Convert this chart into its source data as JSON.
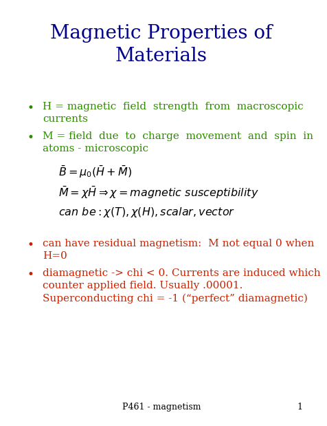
{
  "title": "Magnetic Properties of\nMaterials",
  "title_color": "#00008B",
  "title_fontsize": 20,
  "bullet_color": "#2E8B00",
  "bullet_color2": "#CC2200",
  "background_color": "#FFFFFF",
  "footer_text": "P461 - magnetism",
  "footer_page": "1",
  "bullets_green": [
    [
      "H = magnetic  field  strength  from  macroscopic",
      "currents"
    ],
    [
      "M = field  due  to  charge  movement  and  spin  in",
      "atoms - microscopic"
    ]
  ],
  "bullets_red": [
    [
      "can have residual magnetism:  M not equal 0 when",
      "H=0"
    ],
    [
      "diamagnetic -> chi < 0. Currents are induced which",
      "counter applied field. Usually .00001.",
      "Superconducting chi = -1 (“perfect” diamagnetic)"
    ]
  ],
  "eq1": "$\\bar{B} = \\mu_0(\\bar{H} + \\bar{M})$",
  "eq2": "$\\bar{M} = \\chi\\bar{H} \\Rightarrow \\chi = \\mathit{magnetic\\ susceptibility}$",
  "eq3": "$\\mathit{can\\ be} : \\chi(T),\\chi(H), \\mathit{scalar}, \\mathit{vector}$",
  "bullet_fontsize": 11,
  "eq_fontsize": 11.5,
  "footer_fontsize": 9
}
